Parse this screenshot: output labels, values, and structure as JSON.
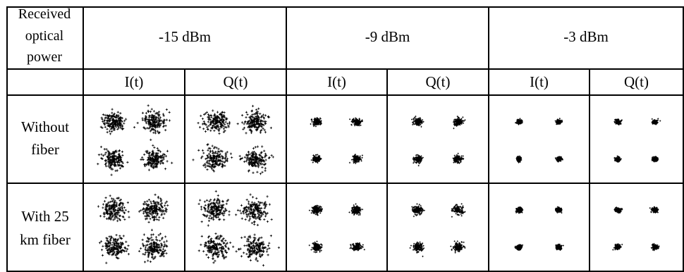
{
  "header": {
    "row_label": [
      "Received",
      "optical",
      "power"
    ],
    "power_levels": [
      "-15 dBm",
      "-9 dBm",
      "-3 dBm"
    ],
    "quadratures": [
      "I(t)",
      "Q(t)"
    ]
  },
  "rows": [
    {
      "label": [
        "Without",
        "fiber"
      ]
    },
    {
      "label": [
        "With 25",
        "km fiber"
      ]
    }
  ],
  "constellations": {
    "marker": "+",
    "color": "#000000",
    "cells": [
      {
        "row": 0,
        "power": "-15 dBm",
        "channel": "I(t)",
        "spread": 1.0
      },
      {
        "row": 0,
        "power": "-15 dBm",
        "channel": "Q(t)",
        "spread": 1.05
      },
      {
        "row": 0,
        "power": "-9 dBm",
        "channel": "I(t)",
        "spread": 0.36
      },
      {
        "row": 0,
        "power": "-9 dBm",
        "channel": "Q(t)",
        "spread": 0.38
      },
      {
        "row": 0,
        "power": "-3 dBm",
        "channel": "I(t)",
        "spread": 0.22
      },
      {
        "row": 0,
        "power": "-3 dBm",
        "channel": "Q(t)",
        "spread": 0.22
      },
      {
        "row": 1,
        "power": "-15 dBm",
        "channel": "I(t)",
        "spread": 1.08
      },
      {
        "row": 1,
        "power": "-15 dBm",
        "channel": "Q(t)",
        "spread": 1.15
      },
      {
        "row": 1,
        "power": "-9 dBm",
        "channel": "I(t)",
        "spread": 0.42
      },
      {
        "row": 1,
        "power": "-9 dBm",
        "channel": "Q(t)",
        "spread": 0.45
      },
      {
        "row": 1,
        "power": "-3 dBm",
        "channel": "I(t)",
        "spread": 0.25
      },
      {
        "row": 1,
        "power": "-3 dBm",
        "channel": "Q(t)",
        "spread": 0.26
      }
    ]
  }
}
